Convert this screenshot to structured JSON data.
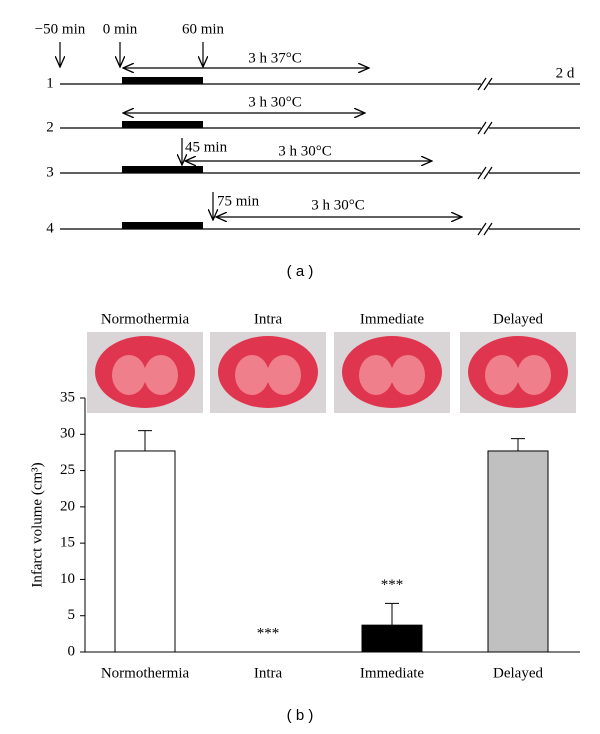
{
  "panel_a": {
    "time_labels": [
      "−50 min",
      "0 min",
      "60 min"
    ],
    "rows": [
      {
        "label": "1",
        "duration": "3 h 37°C",
        "end": "2 d"
      },
      {
        "label": "2",
        "duration": "3 h 30°C"
      },
      {
        "label": "3",
        "start": "45 min",
        "duration": "3 h 30°C"
      },
      {
        "label": "4",
        "start": "75 min",
        "duration": "3 h 30°C"
      }
    ],
    "caption": "( a )"
  },
  "chart_data": {
    "type": "bar",
    "y_label": "Infarct volume (cm³)",
    "categories": [
      "Normothermia",
      "Intra",
      "Immediate",
      "Delayed"
    ],
    "values": [
      27.7,
      0,
      3.7,
      27.7
    ],
    "errors": [
      2.8,
      0,
      3,
      1.7
    ],
    "colors": [
      "#ffffff",
      "#ffffff",
      "#000000",
      "#c0c0c0"
    ],
    "significance": [
      null,
      "***",
      "***",
      null
    ],
    "ylim": [
      0,
      35
    ],
    "yticks": [
      0,
      5,
      10,
      15,
      20,
      25,
      30,
      35
    ],
    "caption": "( b )"
  }
}
